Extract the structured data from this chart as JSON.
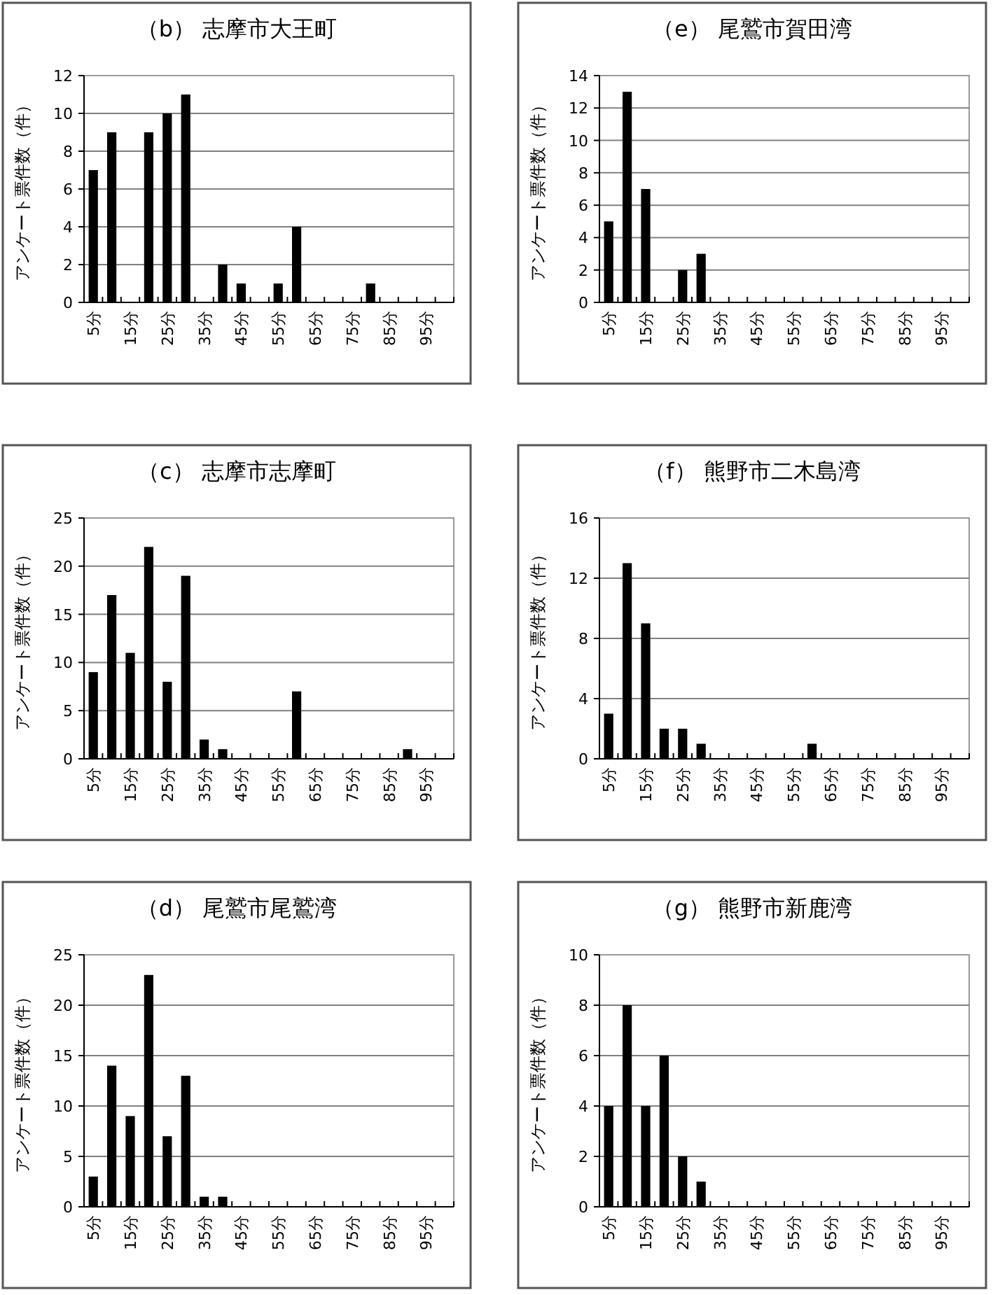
{
  "chart_data": [
    {
      "type": "bar",
      "title": "（b） 志摩市大王町",
      "ylabel": "アンケート票件数（件）",
      "categories": [
        "5分",
        null,
        "15分",
        null,
        "25分",
        null,
        "35分",
        null,
        "45分",
        null,
        "55分",
        null,
        "65分",
        null,
        "75分",
        null,
        "85分",
        null,
        "95分",
        null
      ],
      "values": [
        7,
        9,
        0,
        9,
        10,
        11,
        0,
        2,
        1,
        0,
        1,
        4,
        0,
        0,
        0,
        1,
        0,
        0,
        0,
        0
      ],
      "color": "#000000",
      "ylim": [
        0,
        12
      ],
      "yticks": [
        0,
        2,
        4,
        6,
        8,
        10,
        12
      ],
      "grid": "y"
    },
    {
      "type": "bar",
      "title": "（e） 尾鷲市賀田湾",
      "ylabel": "アンケート票件数（件）",
      "categories": [
        "5分",
        null,
        "15分",
        null,
        "25分",
        null,
        "35分",
        null,
        "45分",
        null,
        "55分",
        null,
        "65分",
        null,
        "75分",
        null,
        "85分",
        null,
        "95分",
        null
      ],
      "values": [
        5,
        13,
        7,
        0,
        2,
        3,
        0,
        0,
        0,
        0,
        0,
        0,
        0,
        0,
        0,
        0,
        0,
        0,
        0,
        0
      ],
      "color": "#000000",
      "ylim": [
        0,
        14
      ],
      "yticks": [
        0,
        2,
        4,
        6,
        8,
        10,
        12,
        14
      ],
      "grid": "y"
    },
    {
      "type": "bar",
      "title": "（c） 志摩市志摩町",
      "ylabel": "アンケート票件数（件）",
      "categories": [
        "5分",
        null,
        "15分",
        null,
        "25分",
        null,
        "35分",
        null,
        "45分",
        null,
        "55分",
        null,
        "65分",
        null,
        "75分",
        null,
        "85分",
        null,
        "95分",
        null
      ],
      "values": [
        9,
        17,
        11,
        22,
        8,
        19,
        2,
        1,
        0,
        0,
        0,
        7,
        0,
        0,
        0,
        0,
        0,
        1,
        0,
        0
      ],
      "color": "#000000",
      "ylim": [
        0,
        25
      ],
      "yticks": [
        0,
        5,
        10,
        15,
        20,
        25
      ],
      "grid": "y"
    },
    {
      "type": "bar",
      "title": "（f） 熊野市二木島湾",
      "ylabel": "アンケート票件数（件）",
      "categories": [
        "5分",
        null,
        "15分",
        null,
        "25分",
        null,
        "35分",
        null,
        "45分",
        null,
        "55分",
        null,
        "65分",
        null,
        "75分",
        null,
        "85分",
        null,
        "95分",
        null
      ],
      "values": [
        3,
        13,
        9,
        2,
        2,
        1,
        0,
        0,
        0,
        0,
        0,
        1,
        0,
        0,
        0,
        0,
        0,
        0,
        0,
        0
      ],
      "color": "#000000",
      "ylim": [
        0,
        16
      ],
      "yticks": [
        0,
        4,
        8,
        12,
        16
      ],
      "grid": "y"
    },
    {
      "type": "bar",
      "title": "（d） 尾鷲市尾鷲湾",
      "ylabel": "アンケート票件数（件）",
      "categories": [
        "5分",
        null,
        "15分",
        null,
        "25分",
        null,
        "35分",
        null,
        "45分",
        null,
        "55分",
        null,
        "65分",
        null,
        "75分",
        null,
        "85分",
        null,
        "95分",
        null
      ],
      "values": [
        3,
        14,
        9,
        23,
        7,
        13,
        1,
        1,
        0,
        0,
        0,
        0,
        0,
        0,
        0,
        0,
        0,
        0,
        0,
        0
      ],
      "color": "#000000",
      "ylim": [
        0,
        25
      ],
      "yticks": [
        0,
        5,
        10,
        15,
        20,
        25
      ],
      "grid": "y"
    },
    {
      "type": "bar",
      "title": "（g） 熊野市新鹿湾",
      "ylabel": "アンケート票件数（件）",
      "categories": [
        "5分",
        null,
        "15分",
        null,
        "25分",
        null,
        "35分",
        null,
        "45分",
        null,
        "55分",
        null,
        "65分",
        null,
        "75分",
        null,
        "85分",
        null,
        "95分",
        null
      ],
      "values": [
        4,
        8,
        4,
        6,
        2,
        1,
        0,
        0,
        0,
        0,
        0,
        0,
        0,
        0,
        0,
        0,
        0,
        0,
        0,
        0
      ],
      "color": "#000000",
      "ylim": [
        0,
        10
      ],
      "yticks": [
        0,
        2,
        4,
        6,
        8,
        10
      ],
      "grid": "y"
    }
  ]
}
